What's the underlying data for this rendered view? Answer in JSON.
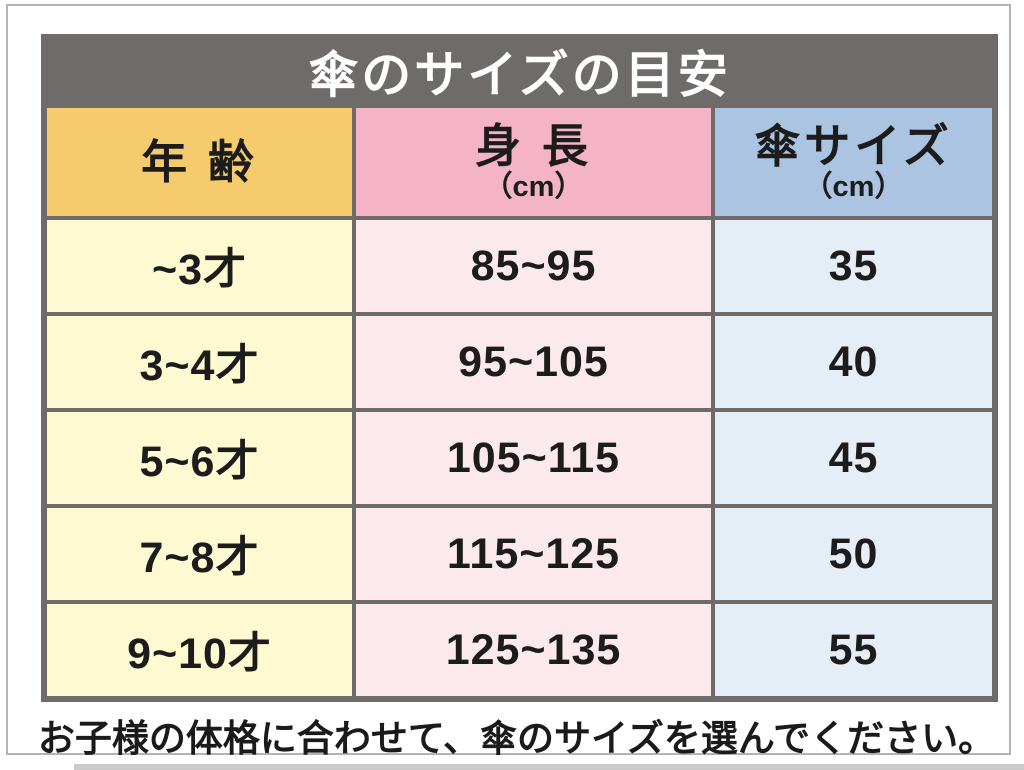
{
  "table": {
    "title": "傘のサイズの目安",
    "columns": [
      {
        "label": "年 齢",
        "sub": ""
      },
      {
        "label": "身 長",
        "sub": "（cm）"
      },
      {
        "label": "傘サイズ",
        "sub": "（cm）"
      }
    ],
    "rows": [
      [
        "~3才",
        "85~95",
        "35"
      ],
      [
        "3~4才",
        "95~105",
        "40"
      ],
      [
        "5~6才",
        "105~115",
        "45"
      ],
      [
        "7~8才",
        "115~125",
        "50"
      ],
      [
        "9~10才",
        "125~135",
        "55"
      ]
    ],
    "note": "お子様の体格に合わせて、傘のサイズを選んでください。"
  },
  "colors": {
    "title_bar": "#6f6b6b",
    "header_age": "#f6cb6d",
    "header_height": "#f5b3c7",
    "header_size": "#aac4e2",
    "cell_age": "#fdf9d1",
    "cell_height": "#fbe9ee",
    "cell_size": "#e5eef7",
    "grid_line": "#6f6b6b",
    "outer_border": "#b3b3b3",
    "title_text": "#ffffff",
    "body_text": "#1c1c1c"
  }
}
